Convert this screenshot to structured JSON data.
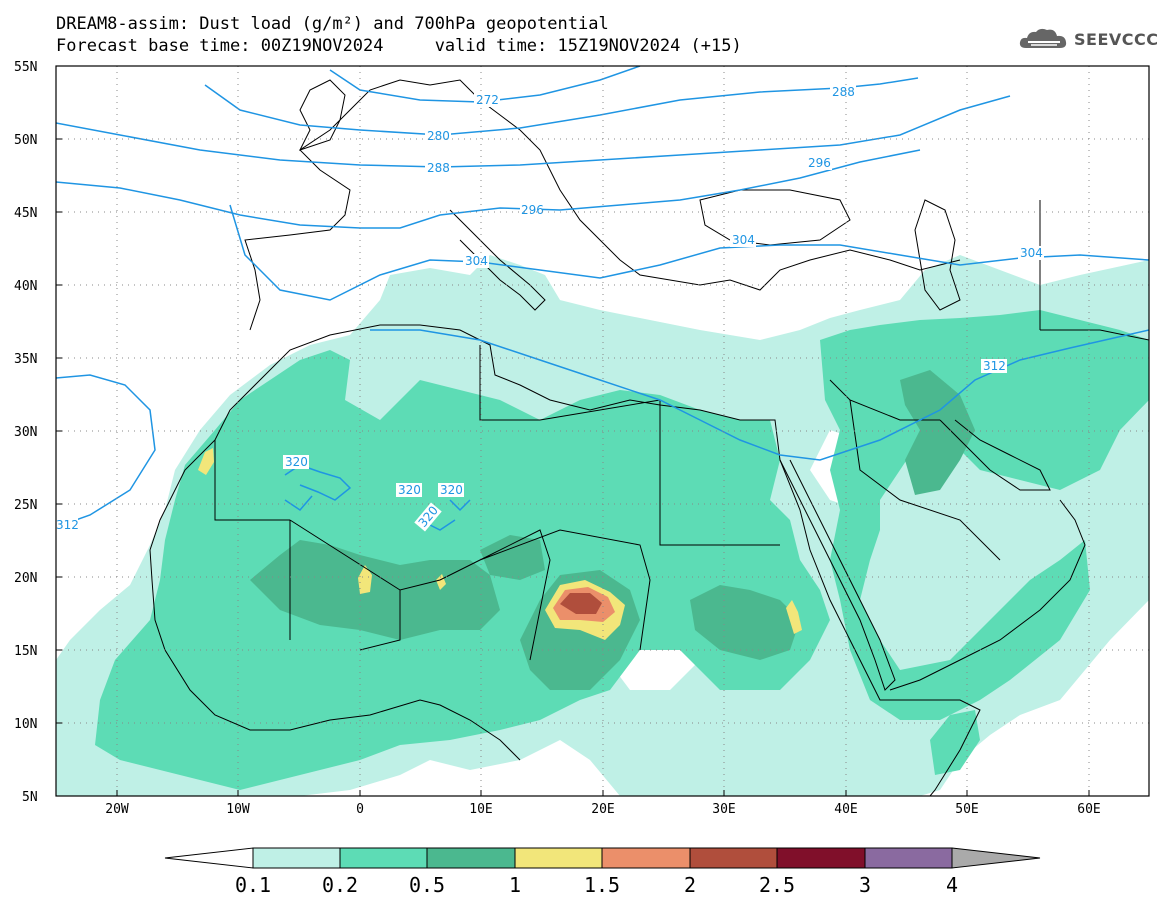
{
  "title": {
    "line1": "DREAM8-assim: Dust load (g/m²) and 700hPa geopotential",
    "line2": "Forecast base time: 00Z19NOV2024     valid time: 15Z19NOV2024 (+15)"
  },
  "logo": {
    "text": "SEEVCCC",
    "icon": "cloud-icon"
  },
  "map": {
    "lon_range": [
      -25,
      65
    ],
    "lat_range": [
      5,
      55
    ],
    "lat_labels": [
      "55N",
      "50N",
      "45N",
      "40N",
      "35N",
      "30N",
      "25N",
      "20N",
      "15N",
      "10N",
      "5N"
    ],
    "lon_labels": [
      "20W",
      "10W",
      "0",
      "10E",
      "20E",
      "30E",
      "40E",
      "50E",
      "60E"
    ],
    "colors": {
      "contour": "#1f95e3",
      "coast": "#000000"
    }
  },
  "contour_labels": [
    {
      "text": "272"
    },
    {
      "text": "280"
    },
    {
      "text": "288"
    },
    {
      "text": "288"
    },
    {
      "text": "296"
    },
    {
      "text": "296"
    },
    {
      "text": "304"
    },
    {
      "text": "304"
    },
    {
      "text": "304"
    },
    {
      "text": "312"
    },
    {
      "text": "312"
    },
    {
      "text": "320"
    },
    {
      "text": "320"
    },
    {
      "text": "320"
    },
    {
      "text": "320"
    }
  ],
  "colorbar": {
    "ticks": [
      "0.1",
      "0.2",
      "0.5",
      "1",
      "1.5",
      "2",
      "2.5",
      "3",
      "4"
    ],
    "colors": [
      "#ffffff",
      "#bff0e6",
      "#5ddcb5",
      "#4bb88f",
      "#f2e67a",
      "#eb8f6a",
      "#b04e3c",
      "#800f2a",
      "#8a6aa0",
      "#aaaaaa"
    ]
  }
}
